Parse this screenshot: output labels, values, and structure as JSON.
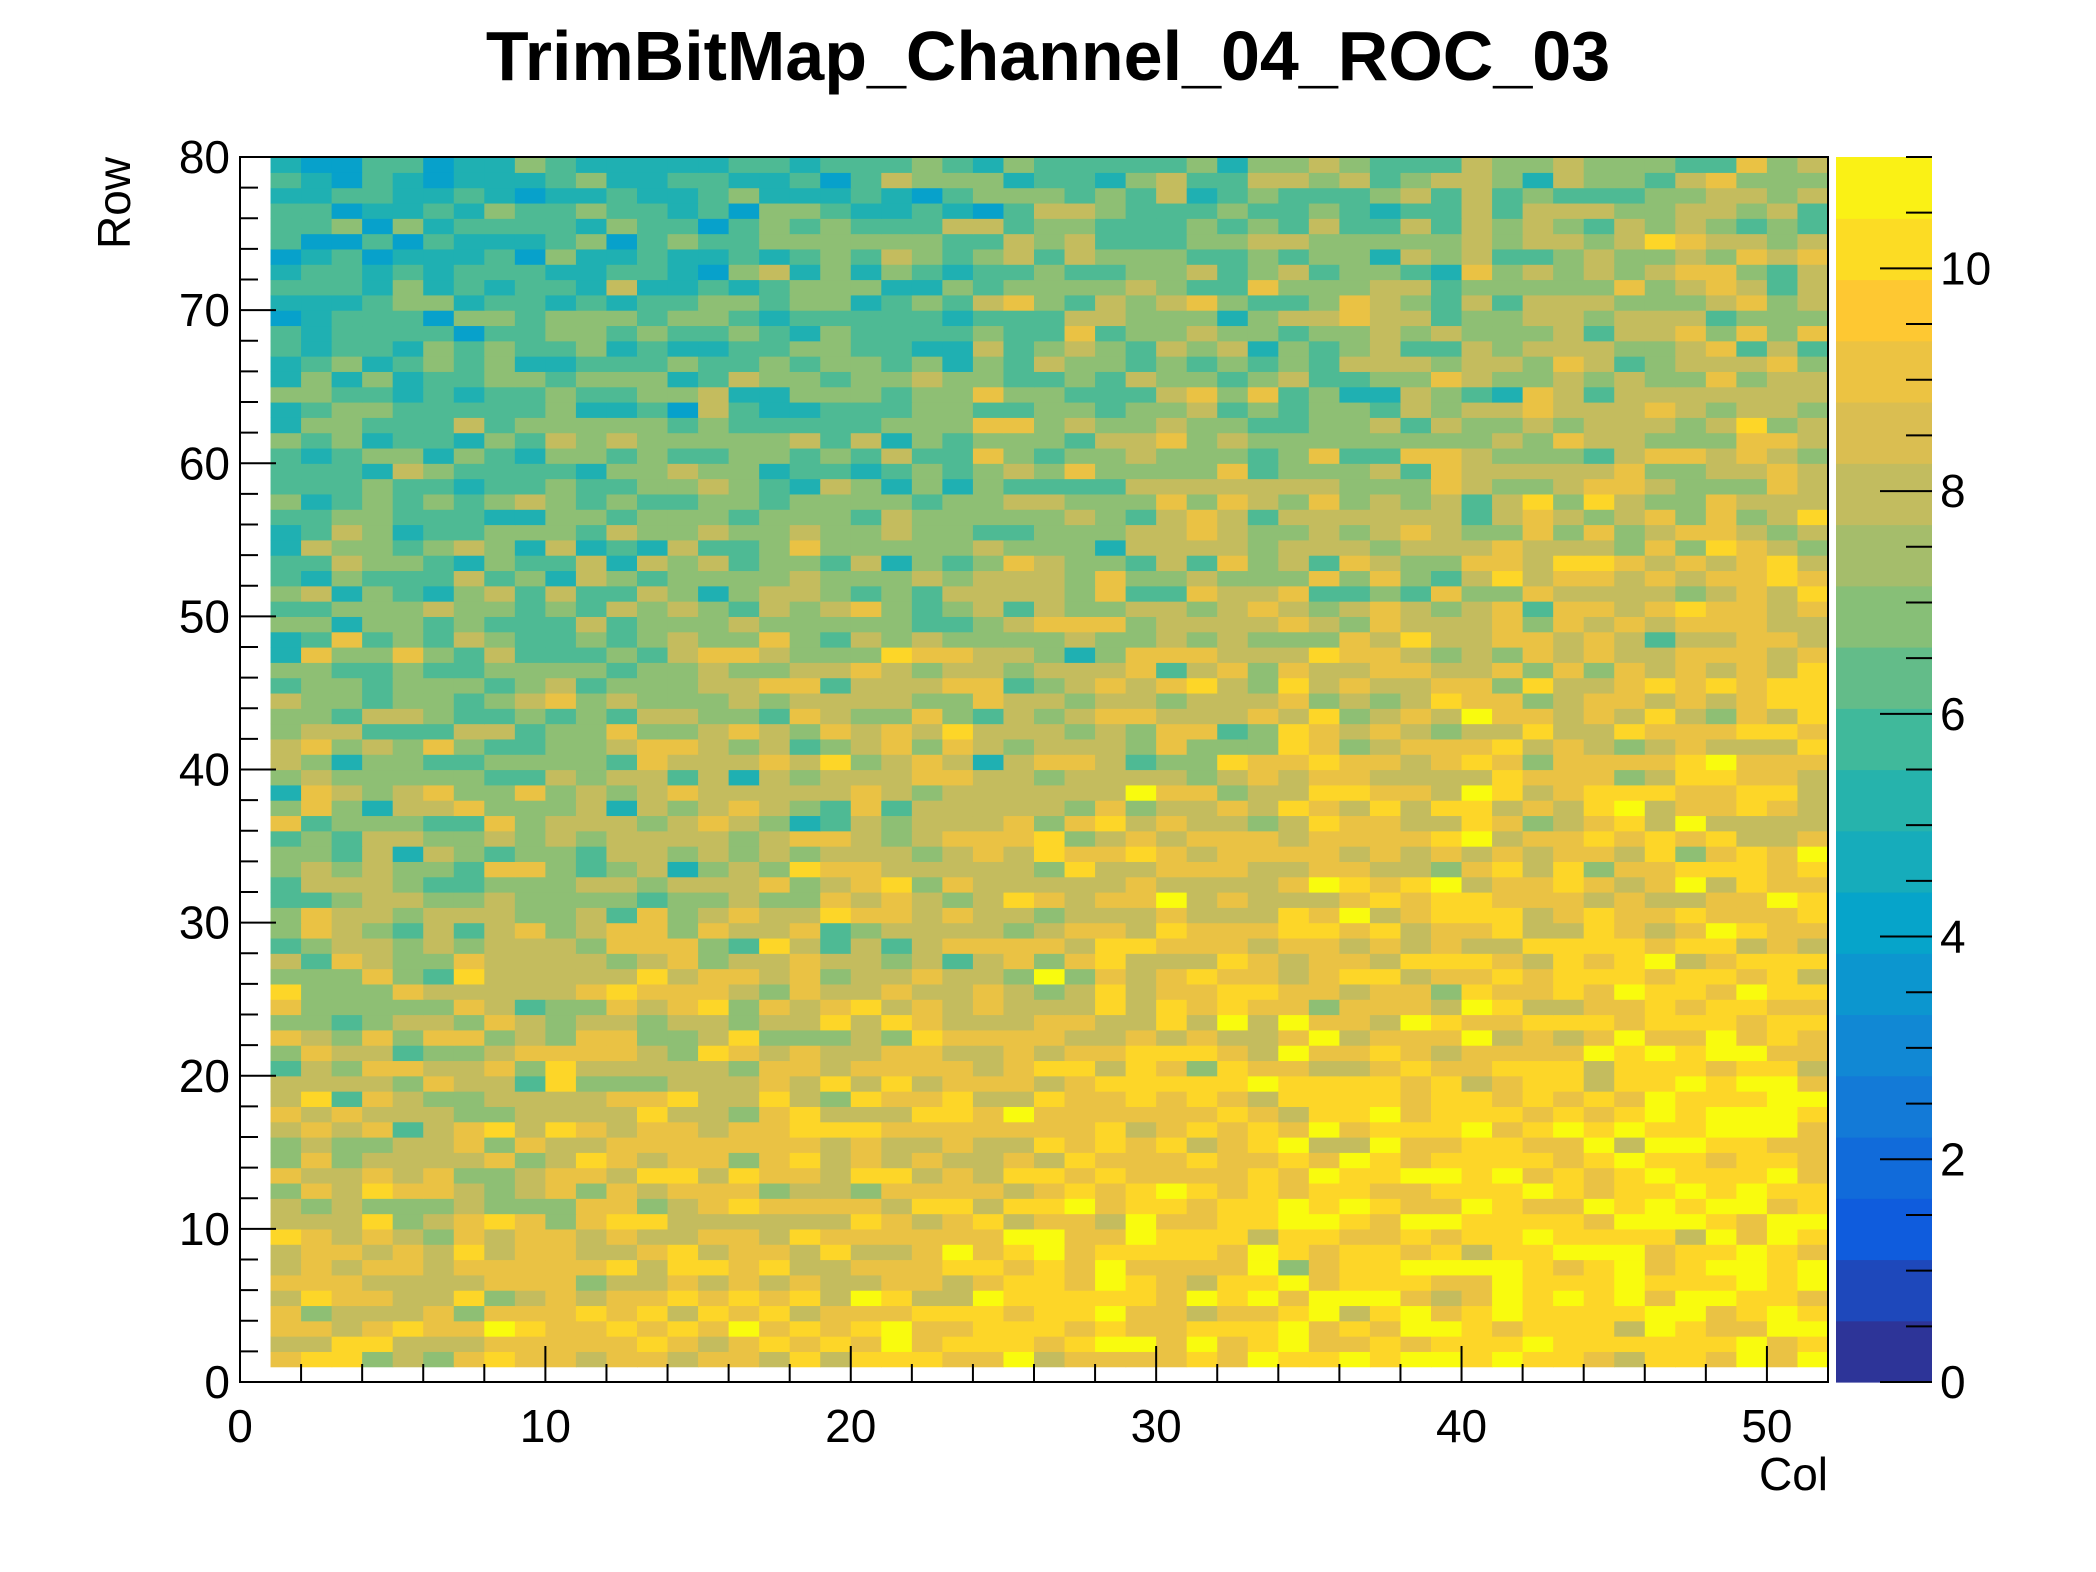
{
  "chart_data": {
    "type": "heatmap",
    "title": "TrimBitMap_Channel_04_ROC_03",
    "xlabel": "Col",
    "ylabel": "Row",
    "xlim": [
      0,
      52
    ],
    "ylim": [
      0,
      80
    ],
    "zlim": [
      0,
      11
    ],
    "x_ticks": [
      0,
      10,
      20,
      30,
      40,
      50
    ],
    "y_ticks": [
      0,
      10,
      20,
      30,
      40,
      50,
      60,
      70,
      80
    ],
    "z_ticks": [
      0,
      2,
      4,
      6,
      8,
      10
    ],
    "x_bins": [
      1,
      51
    ],
    "y_bins": [
      1,
      79
    ],
    "palette": "kBird",
    "palette_colors": [
      "#352a87",
      "#0f5cdd",
      "#1481d6",
      "#06a4ca",
      "#2eb7a4",
      "#87bf77",
      "#d1bb59",
      "#fec832",
      "#f9fb0e"
    ],
    "value_model": {
      "description": "Per-pixel trim bit value (integer 0-11); lower (blue) values concentrated at upper-left, higher (yellow) values at lower-right",
      "base": 8.6,
      "col_gradient": 0.045,
      "row_gradient": -0.045,
      "noise": 1.2,
      "seed": 403
    }
  }
}
